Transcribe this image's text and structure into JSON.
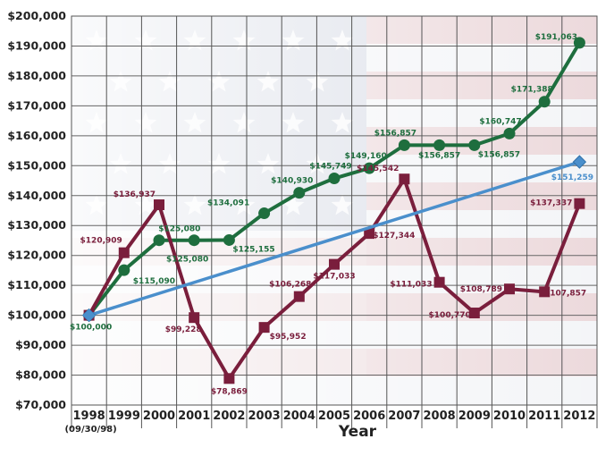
{
  "chart_data": {
    "type": "line",
    "title": "",
    "xlabel": "Year",
    "ylabel": "",
    "x_tick_labels": [
      "1998",
      "1999",
      "2000",
      "2001",
      "2002",
      "2003",
      "2004",
      "2005",
      "2006",
      "2007",
      "2008",
      "2009",
      "2010",
      "2011",
      "2012"
    ],
    "x_first_sublabel": "(09/30/98)",
    "y_tick_labels": [
      "$70,000",
      "$80,000",
      "$90,000",
      "$100,000",
      "$110,000",
      "$120,000",
      "$130,000",
      "$140,000",
      "$150,000",
      "$160,000",
      "$170,000",
      "$180,000",
      "$190,000",
      "$200,000"
    ],
    "ylim": [
      70000,
      200000
    ],
    "grid": true,
    "background": "american-flag-watermark",
    "series": [
      {
        "color": "#1e6e3e",
        "marker": "circle",
        "values": [
          100000,
          115090,
          125080,
          125080,
          125155,
          134091,
          140930,
          145749,
          149160,
          156857,
          156857,
          156857,
          160747,
          171388,
          191063
        ],
        "labels": [
          "$100,000",
          "$115,090",
          "$125,080",
          "$125,080",
          "$125,155",
          "$134,091",
          "$140,930",
          "$145,749",
          "$149,160",
          "$156,857",
          "$156,857",
          "$156,857",
          "$160,747",
          "$171,388",
          "$191,063"
        ]
      },
      {
        "color": "#7a1e3c",
        "marker": "square",
        "values": [
          100000,
          120909,
          136937,
          99228,
          78869,
          95952,
          106268,
          117033,
          127344,
          145542,
          111033,
          100770,
          108789,
          107857,
          137337
        ],
        "labels": [
          "",
          "$120,909",
          "$136,937",
          "$99,228",
          "$78,869",
          "$95,952",
          "$106,268",
          "$117,033",
          "$127,344",
          "$145,542",
          "$111,033",
          "$100,770",
          "$108,789",
          "107,857",
          "$137,337"
        ]
      },
      {
        "color": "#4a8fcc",
        "marker": "diamond",
        "x_index": [
          0,
          14
        ],
        "values": [
          100000,
          151259
        ],
        "labels": [
          "",
          "$151,259"
        ]
      }
    ]
  }
}
